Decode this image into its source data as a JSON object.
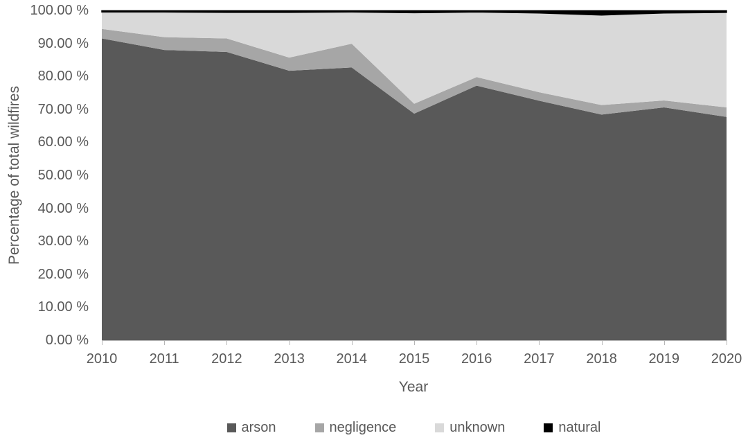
{
  "chart_data": {
    "type": "area",
    "stacking": "percent",
    "title": "",
    "xlabel": "Year",
    "ylabel": "Percentage of total wildfires",
    "categories": [
      "2010",
      "2011",
      "2012",
      "2013",
      "2014",
      "2015",
      "2016",
      "2017",
      "2018",
      "2019",
      "2020"
    ],
    "series": [
      {
        "name": "arson",
        "color": "#595959",
        "values": [
          91.6,
          88.1,
          87.5,
          81.8,
          82.8,
          68.8,
          77.3,
          72.7,
          68.5,
          70.7,
          67.8
        ]
      },
      {
        "name": "negligence",
        "color": "#a6a6a6",
        "values": [
          2.9,
          3.9,
          4.1,
          4.0,
          7.2,
          3.0,
          2.6,
          2.6,
          2.9,
          2.1,
          2.9
        ]
      },
      {
        "name": "unknown",
        "color": "#d9d9d9",
        "values": [
          5.1,
          7.6,
          7.9,
          13.7,
          9.6,
          27.6,
          19.7,
          24.0,
          27.3,
          26.5,
          28.8
        ]
      },
      {
        "name": "natural",
        "color": "#000000",
        "values": [
          0.4,
          0.4,
          0.5,
          0.5,
          0.4,
          0.6,
          0.4,
          0.7,
          1.3,
          0.7,
          0.5
        ]
      }
    ],
    "ytick_labels": [
      "0.00 %",
      "10.00 %",
      "20.00 %",
      "30.00 %",
      "40.00 %",
      "50.00 %",
      "60.00 %",
      "70.00 %",
      "80.00 %",
      "90.00 %",
      "100.00 %"
    ],
    "ylim": [
      0,
      100
    ],
    "legend_position": "bottom",
    "grid": false
  },
  "colors": {
    "axis_text": "#595959",
    "axis_line": "#b7b7b7",
    "background": "#ffffff"
  }
}
